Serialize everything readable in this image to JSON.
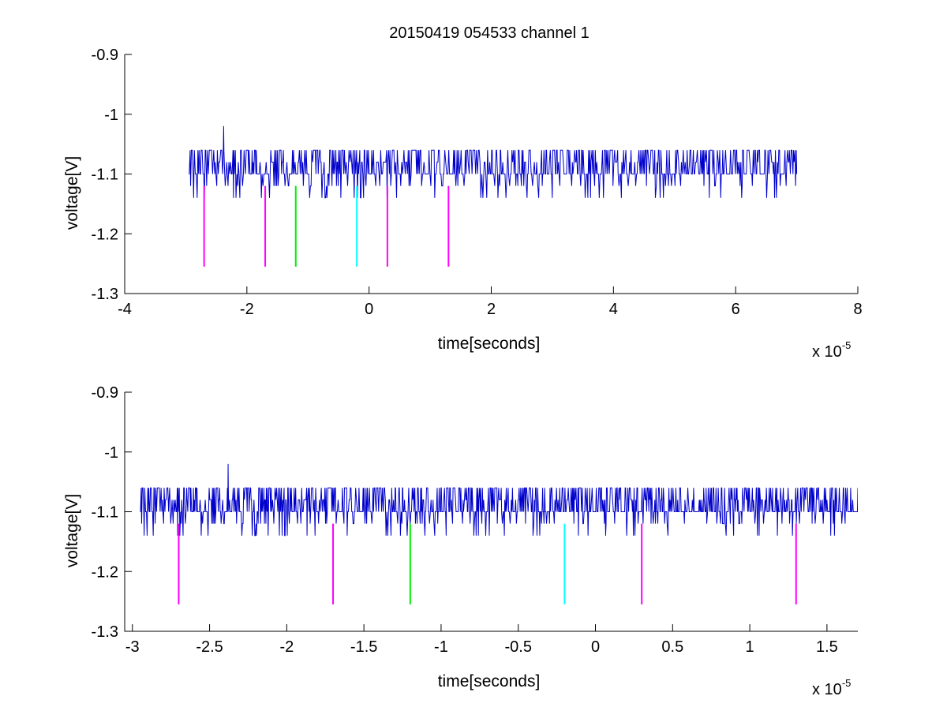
{
  "figure_title": "20150419 054533 channel 1",
  "chart_data": [
    {
      "type": "line",
      "title": "20150419 054533 channel 1",
      "xlabel": "time[seconds]",
      "ylabel": "voltage[V]",
      "x_multiplier_label": "x 10",
      "x_multiplier_exponent": "-5",
      "xlim": [
        -4,
        8
      ],
      "ylim": [
        -1.3,
        -0.9
      ],
      "x_ticks": [
        -4,
        -2,
        0,
        2,
        4,
        6,
        8
      ],
      "x_tick_labels": [
        "-4",
        "-2",
        "0",
        "2",
        "4",
        "6",
        "8"
      ],
      "y_ticks": [
        -0.9,
        -1,
        -1.1,
        -1.2,
        -1.3
      ],
      "y_tick_labels": [
        "-0.9",
        "-1",
        "-1.1",
        "-1.2",
        "-1.3"
      ],
      "grid": false,
      "signal": {
        "color": "#0000cc",
        "x_range": [
          -2.95,
          7.0
        ],
        "baseline": -1.1,
        "levels": [
          -1.06,
          -1.08,
          -1.1,
          -1.12,
          -1.14
        ],
        "spike": {
          "x": -2.38,
          "y": -1.02
        }
      },
      "markers": [
        {
          "x": -2.7,
          "y_top": -1.12,
          "y_bottom": -1.255,
          "color": "#ff00ff"
        },
        {
          "x": -1.7,
          "y_top": -1.12,
          "y_bottom": -1.255,
          "color": "#ff00ff"
        },
        {
          "x": -1.2,
          "y_top": -1.12,
          "y_bottom": -1.255,
          "color": "#00ee00"
        },
        {
          "x": -0.2,
          "y_top": -1.12,
          "y_bottom": -1.255,
          "color": "#00ffff"
        },
        {
          "x": 0.3,
          "y_top": -1.12,
          "y_bottom": -1.255,
          "color": "#ff00ff"
        },
        {
          "x": 1.3,
          "y_top": -1.12,
          "y_bottom": -1.255,
          "color": "#ff00ff"
        }
      ]
    },
    {
      "type": "line",
      "title": "",
      "xlabel": "time[seconds]",
      "ylabel": "voltage[V]",
      "x_multiplier_label": "x 10",
      "x_multiplier_exponent": "-5",
      "xlim": [
        -3.05,
        1.7
      ],
      "ylim": [
        -1.3,
        -0.9
      ],
      "x_ticks": [
        -3,
        -2.5,
        -2,
        -1.5,
        -1,
        -0.5,
        0,
        0.5,
        1,
        1.5
      ],
      "x_tick_labels": [
        "-3",
        "-2.5",
        "-2",
        "-1.5",
        "-1",
        "-0.5",
        "0",
        "0.5",
        "1",
        "1.5"
      ],
      "y_ticks": [
        -0.9,
        -1,
        -1.1,
        -1.2,
        -1.3
      ],
      "y_tick_labels": [
        "-0.9",
        "-1",
        "-1.1",
        "-1.2",
        "-1.3"
      ],
      "grid": false,
      "signal": {
        "color": "#0000cc",
        "x_range": [
          -2.95,
          1.7
        ],
        "baseline": -1.1,
        "levels": [
          -1.06,
          -1.08,
          -1.1,
          -1.12,
          -1.14
        ],
        "spike": {
          "x": -2.38,
          "y": -1.02
        }
      },
      "markers": [
        {
          "x": -2.7,
          "y_top": -1.12,
          "y_bottom": -1.255,
          "color": "#ff00ff"
        },
        {
          "x": -1.7,
          "y_top": -1.12,
          "y_bottom": -1.255,
          "color": "#ff00ff"
        },
        {
          "x": -1.2,
          "y_top": -1.12,
          "y_bottom": -1.255,
          "color": "#00ee00"
        },
        {
          "x": -0.2,
          "y_top": -1.12,
          "y_bottom": -1.255,
          "color": "#00ffff"
        },
        {
          "x": 0.3,
          "y_top": -1.12,
          "y_bottom": -1.255,
          "color": "#ff00ff"
        },
        {
          "x": 1.3,
          "y_top": -1.12,
          "y_bottom": -1.255,
          "color": "#ff00ff"
        }
      ]
    }
  ]
}
